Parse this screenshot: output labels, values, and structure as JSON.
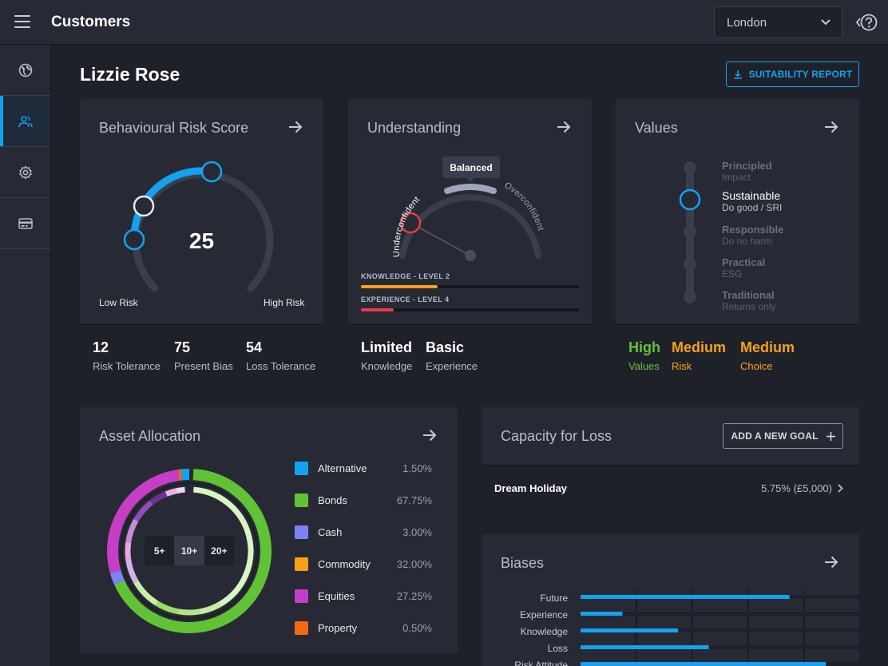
{
  "topbar": {
    "title": "Customers",
    "location": "London"
  },
  "client": {
    "name": "Lizzie Rose"
  },
  "report_button": "SUITABILITY REPORT",
  "risk_card": {
    "title": "Behavioural Risk Score",
    "score": "25",
    "low_label": "Low Risk",
    "high_label": "High Risk",
    "stats": [
      {
        "value": "12",
        "label": "Risk Tolerance"
      },
      {
        "value": "75",
        "label": "Present Bias"
      },
      {
        "value": "54",
        "label": "Loss Tolerance"
      }
    ]
  },
  "understanding_card": {
    "title": "Understanding",
    "gauge_badge": "Balanced",
    "left_arc_label": "Underconfident",
    "right_arc_label": "Overconfident",
    "knowledge_label": "KNOWLEDGE - LEVEL 2",
    "knowledge_progress": 0.35,
    "experience_label": "EXPERIENCE - LEVEL 4",
    "experience_progress": 0.15,
    "stats": [
      {
        "value": "Limited",
        "label": "Knowledge"
      },
      {
        "value": "Basic",
        "label": "Experience"
      }
    ]
  },
  "values_card": {
    "title": "Values",
    "selected_index": 1,
    "items": [
      {
        "name": "Principled",
        "sub": "Impact"
      },
      {
        "name": "Sustainable",
        "sub": "Do good / SRI"
      },
      {
        "name": "Responsible",
        "sub": "Do no harm"
      },
      {
        "name": "Practical",
        "sub": "ESG"
      },
      {
        "name": "Traditional",
        "sub": "Returns only"
      }
    ],
    "stats": [
      {
        "value": "High",
        "label": "Values",
        "color": "#62c236"
      },
      {
        "value": "Medium",
        "label": "Risk",
        "color": "#f7a11a"
      },
      {
        "value": "Medium",
        "label": "Choice",
        "color": "#f7a11a"
      }
    ]
  },
  "asset_card": {
    "title": "Asset Allocation",
    "horizons": [
      "5+",
      "10+",
      "20+"
    ],
    "selected_horizon": 1,
    "legend": [
      {
        "name": "Alternative",
        "value": "1.50%",
        "color": "#13a2f0"
      },
      {
        "name": "Bonds",
        "value": "67.75%",
        "color": "#62c236"
      },
      {
        "name": "Cash",
        "value": "3.00%",
        "color": "#7b83f3"
      },
      {
        "name": "Commodity",
        "value": "32.00%",
        "color": "#f7a11a"
      },
      {
        "name": "Equities",
        "value": "27.25%",
        "color": "#c63ec6"
      },
      {
        "name": "Property",
        "value": "0.50%",
        "color": "#f26a13"
      }
    ]
  },
  "capacity_card": {
    "title": "Capacity for Loss",
    "add_button": "ADD A NEW GOAL",
    "goals": [
      {
        "name": "Dream Holiday",
        "value": "5.75% (£5,000)"
      }
    ]
  },
  "biases_card": {
    "title": "Biases",
    "items": [
      {
        "name": "Future",
        "value": 0.75
      },
      {
        "name": "Experience",
        "value": 0.15
      },
      {
        "name": "Knowledge",
        "value": 0.35
      },
      {
        "name": "Loss",
        "value": 0.46
      },
      {
        "name": "Risk Attitude",
        "value": 0.88
      }
    ]
  }
}
